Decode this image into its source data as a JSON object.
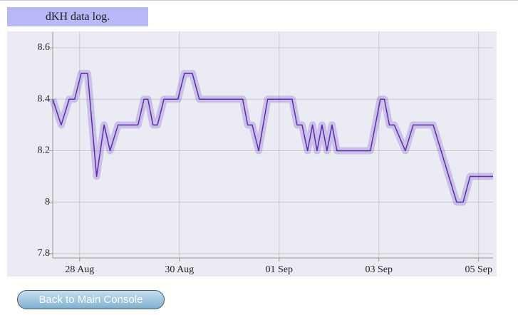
{
  "header": {
    "title": "dKH data log."
  },
  "chart_data": {
    "type": "line",
    "x": [
      27.46,
      27.63,
      27.79,
      27.9,
      28.03,
      28.16,
      28.34,
      28.49,
      28.61,
      28.77,
      29.17,
      29.29,
      29.37,
      29.47,
      29.56,
      29.69,
      29.97,
      30.1,
      30.26,
      30.4,
      31.27,
      31.37,
      31.46,
      31.59,
      31.77,
      32.26,
      32.36,
      32.46,
      32.57,
      32.67,
      32.76,
      32.86,
      32.96,
      33.06,
      33.16,
      33.83,
      34.03,
      34.11,
      34.21,
      34.31,
      34.53,
      34.69,
      35.09,
      35.56,
      35.69,
      35.83,
      36.29
    ],
    "series": [
      {
        "color": "#5b2bb5",
        "values": [
          8.4,
          8.3,
          8.4,
          8.4,
          8.5,
          8.5,
          8.1,
          8.3,
          8.2,
          8.3,
          8.3,
          8.4,
          8.4,
          8.3,
          8.3,
          8.4,
          8.4,
          8.5,
          8.5,
          8.4,
          8.4,
          8.3,
          8.3,
          8.2,
          8.4,
          8.4,
          8.3,
          8.3,
          8.2,
          8.3,
          8.2,
          8.3,
          8.2,
          8.3,
          8.2,
          8.2,
          8.4,
          8.4,
          8.3,
          8.3,
          8.2,
          8.3,
          8.3,
          8.0,
          8.0,
          8.1,
          8.1
        ]
      }
    ],
    "xlim": [
      27.46,
      36.29
    ],
    "xticks": [
      {
        "value": 28,
        "label": "28 Aug"
      },
      {
        "value": 30,
        "label": "30 Aug"
      },
      {
        "value": 32,
        "label": "01 Sep"
      },
      {
        "value": 34,
        "label": "03 Sep"
      },
      {
        "value": 36,
        "label": "05 Sep"
      }
    ],
    "ylim": [
      7.783,
      8.661
    ],
    "yticks": [
      7.8,
      8,
      8.2,
      8.4,
      8.6
    ],
    "grid": true
  },
  "button": {
    "label": "Back to Main Console"
  }
}
